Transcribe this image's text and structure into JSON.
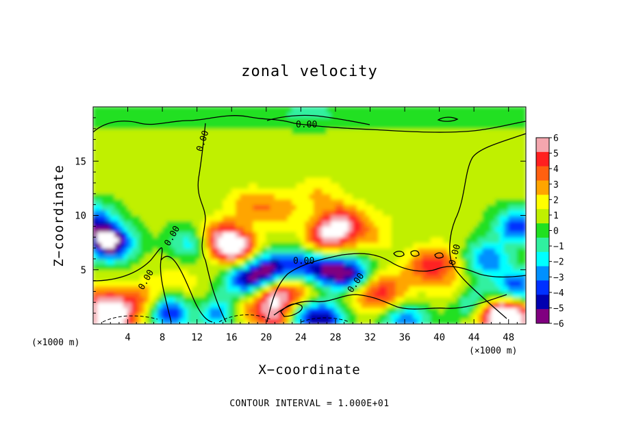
{
  "chart_data": {
    "type": "heatmap",
    "title": "zonal velocity",
    "xlabel": "X−coordinate",
    "ylabel": "Z−coordinate",
    "x_unit_left": "(×1000 m)",
    "x_unit_right": "(×1000 m)",
    "xlim": [
      0,
      50
    ],
    "ylim": [
      0,
      20
    ],
    "x_ticks": [
      4,
      8,
      12,
      16,
      20,
      24,
      28,
      32,
      36,
      40,
      44,
      48
    ],
    "x_tick_labels": [
      "4",
      "8",
      "12",
      "16",
      "20",
      "24",
      "28",
      "32",
      "36",
      "40",
      "44",
      "48"
    ],
    "y_ticks": [
      5,
      10,
      15
    ],
    "y_tick_labels": [
      "5",
      "10",
      "15"
    ],
    "colorbar": {
      "min": -6,
      "max": 6,
      "ticks": [
        6,
        5,
        4,
        3,
        2,
        1,
        0,
        -1,
        -2,
        -3,
        -4,
        -5,
        -6
      ],
      "tick_labels": [
        "6",
        "5",
        "4",
        "3",
        "2",
        "1",
        "0",
        "−1",
        "−2",
        "−3",
        "−4",
        "−5",
        "−6"
      ],
      "colors": [
        "#f4a6ae",
        "#ff2020",
        "#ff6010",
        "#ffa500",
        "#ffff00",
        "#c0f000",
        "#20e020",
        "#30f0a0",
        "#00ffff",
        "#0090ff",
        "#0030ff",
        "#0000b0",
        "#800080"
      ]
    },
    "contour_labels": [
      "0.00",
      "0.00",
      "0.00",
      "0.00",
      "0.00",
      "0.00",
      "0.00"
    ],
    "footer": "CONTOUR INTERVAL = 1.000E+01",
    "grid": false,
    "field_features": [
      {
        "x": 25,
        "z": 18,
        "value": 0.5
      },
      {
        "x": 2,
        "z": 7.5,
        "value": -7
      },
      {
        "x": 0,
        "z": 9.5,
        "value": -4
      },
      {
        "x": 49,
        "z": 9,
        "value": -4
      },
      {
        "x": 45.5,
        "z": 6,
        "value": -3.5
      },
      {
        "x": 16.5,
        "z": 7,
        "value": 7
      },
      {
        "x": 14.5,
        "z": 8,
        "value": 5
      },
      {
        "x": 27,
        "z": 8,
        "value": 6
      },
      {
        "x": 29,
        "z": 9.5,
        "value": 5
      },
      {
        "x": 21.5,
        "z": 10.5,
        "value": 3
      },
      {
        "x": 18,
        "z": 11,
        "value": 3
      },
      {
        "x": 26,
        "z": 12,
        "value": 2.5
      },
      {
        "x": 32,
        "z": 8,
        "value": 2.5
      },
      {
        "x": 11.5,
        "z": 7.5,
        "value": -2.5
      },
      {
        "x": 7.5,
        "z": 3,
        "value": 1.5
      },
      {
        "x": 1,
        "z": 2,
        "value": 4
      },
      {
        "x": 5,
        "z": 2,
        "value": 4
      },
      {
        "x": 2,
        "z": 0.5,
        "value": 7
      },
      {
        "x": 10,
        "z": 4,
        "value": 2
      },
      {
        "x": 9,
        "z": 1.2,
        "value": -5
      },
      {
        "x": 14,
        "z": 1.2,
        "value": -5
      },
      {
        "x": 12.5,
        "z": 1.5,
        "value": 4
      },
      {
        "x": 18,
        "z": 1.5,
        "value": 3
      },
      {
        "x": 18,
        "z": 4,
        "value": -5
      },
      {
        "x": 20.5,
        "z": 5,
        "value": -5
      },
      {
        "x": 21,
        "z": 3,
        "value": 6
      },
      {
        "x": 21.5,
        "z": 0.7,
        "value": 6
      },
      {
        "x": 24,
        "z": 0.6,
        "value": -4
      },
      {
        "x": 27,
        "z": 0.6,
        "value": -4
      },
      {
        "x": 24,
        "z": 3,
        "value": 3
      },
      {
        "x": 24,
        "z": 5.5,
        "value": -2.5
      },
      {
        "x": 30,
        "z": 4.5,
        "value": -5
      },
      {
        "x": 27,
        "z": 5,
        "value": -4
      },
      {
        "x": 33,
        "z": 3.5,
        "value": 4
      },
      {
        "x": 31,
        "z": 2.5,
        "value": 3
      },
      {
        "x": 35,
        "z": 2,
        "value": 3
      },
      {
        "x": 36,
        "z": 0.6,
        "value": -4
      },
      {
        "x": 38,
        "z": 5,
        "value": 3
      },
      {
        "x": 40,
        "z": 5.8,
        "value": 4
      },
      {
        "x": 42,
        "z": 3,
        "value": 3
      },
      {
        "x": 44,
        "z": 2,
        "value": -4
      },
      {
        "x": 46,
        "z": 1.2,
        "value": 5
      },
      {
        "x": 49,
        "z": 3.5,
        "value": -4
      },
      {
        "x": 47.5,
        "z": 0.6,
        "value": 5
      },
      {
        "x": 49,
        "z": 0.6,
        "value": 4
      },
      {
        "x": 34,
        "z": 10,
        "value": 1.2
      },
      {
        "x": 35,
        "z": 13,
        "value": 0.8
      }
    ]
  }
}
